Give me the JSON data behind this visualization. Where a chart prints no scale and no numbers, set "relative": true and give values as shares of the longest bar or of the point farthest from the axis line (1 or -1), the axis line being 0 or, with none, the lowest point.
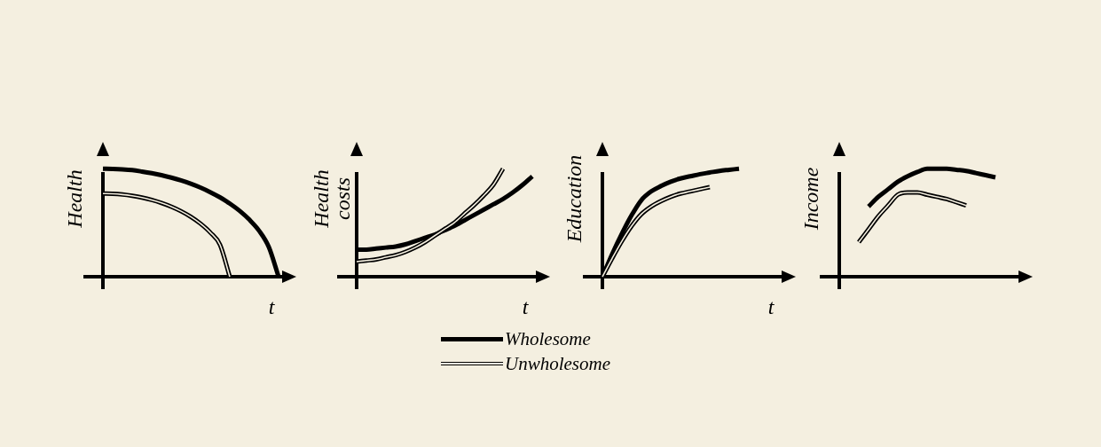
{
  "chart_data": [
    {
      "type": "line",
      "relative": true,
      "ylabel": "Health",
      "xlabel": "t",
      "legend": "bottom",
      "categories": [
        null,
        null,
        null,
        null,
        null,
        null,
        null,
        null,
        null,
        null,
        null,
        null,
        null,
        null,
        null,
        null,
        null,
        null,
        null,
        null,
        null
      ],
      "series": [
        {
          "name": "Wholesome",
          "color": "#000000",
          "values": [
            1,
            0.998,
            0.994,
            0.987,
            0.974,
            0.959,
            0.941,
            0.918,
            0.892,
            0.861,
            0.825,
            0.783,
            0.735,
            0.678,
            0.611,
            0.529,
            0.426,
            0.275,
            0,
            null,
            null
          ]
        },
        {
          "name": "Unwholesome",
          "color": "#000000",
          "values": [
            0.77,
            0.768,
            0.761,
            0.749,
            0.733,
            0.711,
            0.683,
            0.649,
            0.607,
            0.556,
            0.492,
            0.41,
            0.296,
            0,
            null,
            null,
            null,
            null,
            null,
            null,
            null
          ]
        }
      ]
    },
    {
      "type": "line",
      "relative": true,
      "ylabel": "Health costs",
      "xlabel": "t",
      "categories": [
        null,
        null,
        null,
        null,
        null,
        null,
        null,
        null,
        null,
        null,
        null,
        null,
        null,
        null,
        null,
        null,
        null,
        null,
        null,
        null,
        null
      ],
      "series": [
        {
          "color": "#000000",
          "values": [
            0.25,
            0.25,
            0.26,
            0.27,
            0.28,
            0.3,
            0.33,
            0.36,
            0.39,
            0.43,
            0.47,
            0.52,
            0.57,
            0.62,
            0.67,
            0.72,
            0.78,
            0.85,
            0.93,
            null,
            null
          ]
        },
        {
          "color": "#000000",
          "values": [
            0.14,
            0.15,
            0.16,
            0.18,
            0.2,
            0.23,
            0.27,
            0.32,
            0.38,
            0.44,
            0.5,
            0.58,
            0.66,
            0.75,
            0.85,
            1,
            null,
            null,
            null,
            null,
            null
          ]
        }
      ]
    },
    {
      "type": "line",
      "relative": true,
      "ylabel": "Education",
      "xlabel": "t",
      "categories": [
        null,
        null,
        null,
        null,
        null,
        null,
        null,
        null,
        null,
        null,
        null,
        null,
        null,
        null,
        null,
        null,
        null,
        null,
        null,
        null,
        null
      ],
      "series": [
        {
          "color": "#000000",
          "values": [
            0,
            0.21,
            0.4,
            0.57,
            0.71,
            0.79,
            0.84,
            0.88,
            0.91,
            0.93,
            0.95,
            0.965,
            0.98,
            0.99,
            1,
            null,
            null,
            null,
            null,
            null,
            null
          ]
        },
        {
          "color": "#000000",
          "values": [
            0,
            0.17,
            0.33,
            0.47,
            0.58,
            0.65,
            0.7,
            0.74,
            0.77,
            0.79,
            0.81,
            0.83,
            null,
            null,
            null,
            null,
            null,
            null,
            null,
            null,
            null
          ]
        }
      ]
    },
    {
      "type": "line",
      "relative": true,
      "ylabel": "Income",
      "categories": [
        null,
        null,
        null,
        null,
        null,
        null,
        null,
        null,
        null,
        null,
        null,
        null,
        null,
        null,
        null,
        null,
        null,
        null,
        null,
        null,
        null
      ],
      "series": [
        {
          "color": "#000000",
          "values": [
            null,
            null,
            null,
            0.65,
            0.74,
            0.81,
            0.88,
            0.93,
            0.97,
            1,
            1,
            1,
            0.99,
            0.98,
            0.96,
            0.94,
            0.92,
            null,
            null,
            null,
            null
          ]
        },
        {
          "color": "#000000",
          "values": [
            null,
            null,
            0.32,
            0.44,
            0.56,
            0.66,
            0.76,
            0.78,
            0.78,
            0.76,
            0.74,
            0.72,
            0.69,
            0.66,
            null,
            null,
            null,
            null,
            null,
            null,
            null
          ]
        }
      ]
    }
  ]
}
